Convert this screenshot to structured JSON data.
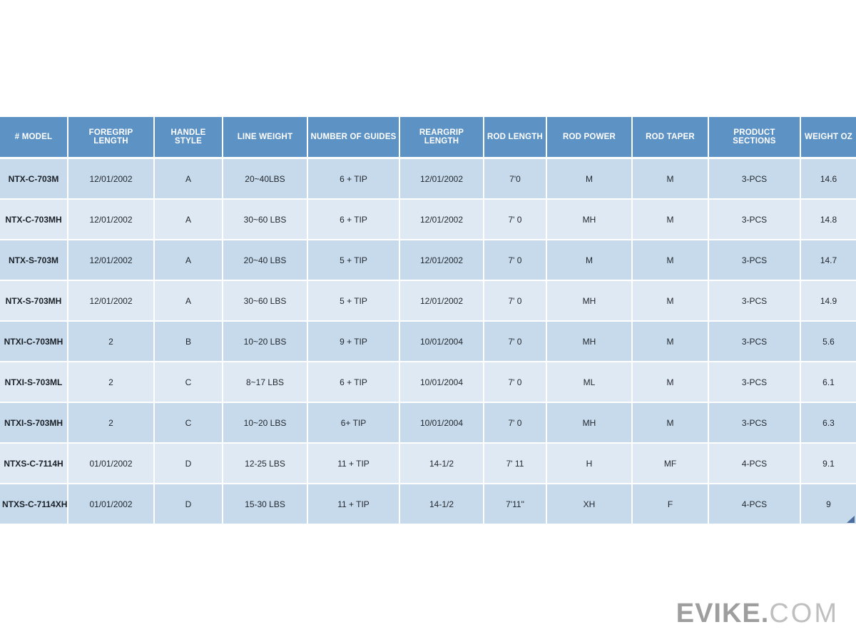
{
  "table": {
    "columns": [
      {
        "key": "model",
        "label": "# MODEL"
      },
      {
        "key": "foregrip_length",
        "label": "FOREGRIP LENGTH"
      },
      {
        "key": "handle_style",
        "label": "HANDLE STYLE"
      },
      {
        "key": "line_weight",
        "label": "LINE WEIGHT"
      },
      {
        "key": "number_of_guides",
        "label": "NUMBER OF GUIDES"
      },
      {
        "key": "reargrip_length",
        "label": "REARGRIP LENGTH"
      },
      {
        "key": "rod_length",
        "label": "ROD LENGTH"
      },
      {
        "key": "rod_power",
        "label": "ROD POWER"
      },
      {
        "key": "rod_taper",
        "label": "ROD TAPER"
      },
      {
        "key": "product_sections",
        "label": "PRODUCT SECTIONS"
      },
      {
        "key": "weight_oz",
        "label": "WEIGHT OZ"
      }
    ],
    "rows": [
      {
        "model": "NTX-C-703M",
        "foregrip_length": "12/01/2002",
        "handle_style": "A",
        "line_weight": "20~40LBS",
        "number_of_guides": "6 + TIP",
        "reargrip_length": "12/01/2002",
        "rod_length": "7'0",
        "rod_power": "M",
        "rod_taper": "M",
        "product_sections": "3-PCS",
        "weight_oz": "14.6"
      },
      {
        "model": "NTX-C-703MH",
        "foregrip_length": "12/01/2002",
        "handle_style": "A",
        "line_weight": "30~60 LBS",
        "number_of_guides": "6 + TIP",
        "reargrip_length": "12/01/2002",
        "rod_length": "7' 0",
        "rod_power": "MH",
        "rod_taper": "M",
        "product_sections": "3-PCS",
        "weight_oz": "14.8"
      },
      {
        "model": "NTX-S-703M",
        "foregrip_length": "12/01/2002",
        "handle_style": "A",
        "line_weight": "20~40 LBS",
        "number_of_guides": "5 + TIP",
        "reargrip_length": "12/01/2002",
        "rod_length": "7' 0",
        "rod_power": "M",
        "rod_taper": "M",
        "product_sections": "3-PCS",
        "weight_oz": "14.7"
      },
      {
        "model": "NTX-S-703MH",
        "foregrip_length": "12/01/2002",
        "handle_style": "A",
        "line_weight": "30~60 LBS",
        "number_of_guides": "5 + TIP",
        "reargrip_length": "12/01/2002",
        "rod_length": "7' 0",
        "rod_power": "MH",
        "rod_taper": "M",
        "product_sections": "3-PCS",
        "weight_oz": "14.9"
      },
      {
        "model": "NTXI-C-703MH",
        "foregrip_length": "2",
        "handle_style": "B",
        "line_weight": "10~20 LBS",
        "number_of_guides": "9 + TIP",
        "reargrip_length": "10/01/2004",
        "rod_length": "7' 0",
        "rod_power": "MH",
        "rod_taper": "M",
        "product_sections": "3-PCS",
        "weight_oz": "5.6"
      },
      {
        "model": "NTXI-S-703ML",
        "foregrip_length": "2",
        "handle_style": "C",
        "line_weight": "8~17 LBS",
        "number_of_guides": "6 + TIP",
        "reargrip_length": "10/01/2004",
        "rod_length": "7' 0",
        "rod_power": "ML",
        "rod_taper": "M",
        "product_sections": "3-PCS",
        "weight_oz": "6.1"
      },
      {
        "model": "NTXI-S-703MH",
        "foregrip_length": "2",
        "handle_style": "C",
        "line_weight": "10~20 LBS",
        "number_of_guides": "6+ TIP",
        "reargrip_length": "10/01/2004",
        "rod_length": "7' 0",
        "rod_power": "MH",
        "rod_taper": "M",
        "product_sections": "3-PCS",
        "weight_oz": "6.3"
      },
      {
        "model": "NTXS-C-7114H",
        "foregrip_length": "01/01/2002",
        "handle_style": "D",
        "line_weight": "12-25 LBS",
        "number_of_guides": "11 + TIP",
        "reargrip_length": "14-1/2",
        "rod_length": "7' 11",
        "rod_power": "H",
        "rod_taper": "MF",
        "product_sections": "4-PCS",
        "weight_oz": "9.1"
      },
      {
        "model": "NTXS-C-7114XH",
        "foregrip_length": "01/01/2002",
        "handle_style": "D",
        "line_weight": "15-30 LBS",
        "number_of_guides": "11 + TIP",
        "reargrip_length": "14-1/2",
        "rod_length": "7'11\"",
        "rod_power": "XH",
        "rod_taper": "F",
        "product_sections": "4-PCS",
        "weight_oz": "9"
      }
    ]
  },
  "logo": {
    "bold": "EVIKE.",
    "light": "COM"
  },
  "colors": {
    "header_bg": "#5d92c5",
    "header_text": "#ffffff",
    "row_dark": "#c6daec",
    "row_light": "#dfe9f4",
    "cell_text": "#24282e",
    "model_text": "#1b2027",
    "logo_bold": "#9e9e9e",
    "logo_light": "#bfbfbf",
    "handle_color": "#4a6d9b"
  }
}
